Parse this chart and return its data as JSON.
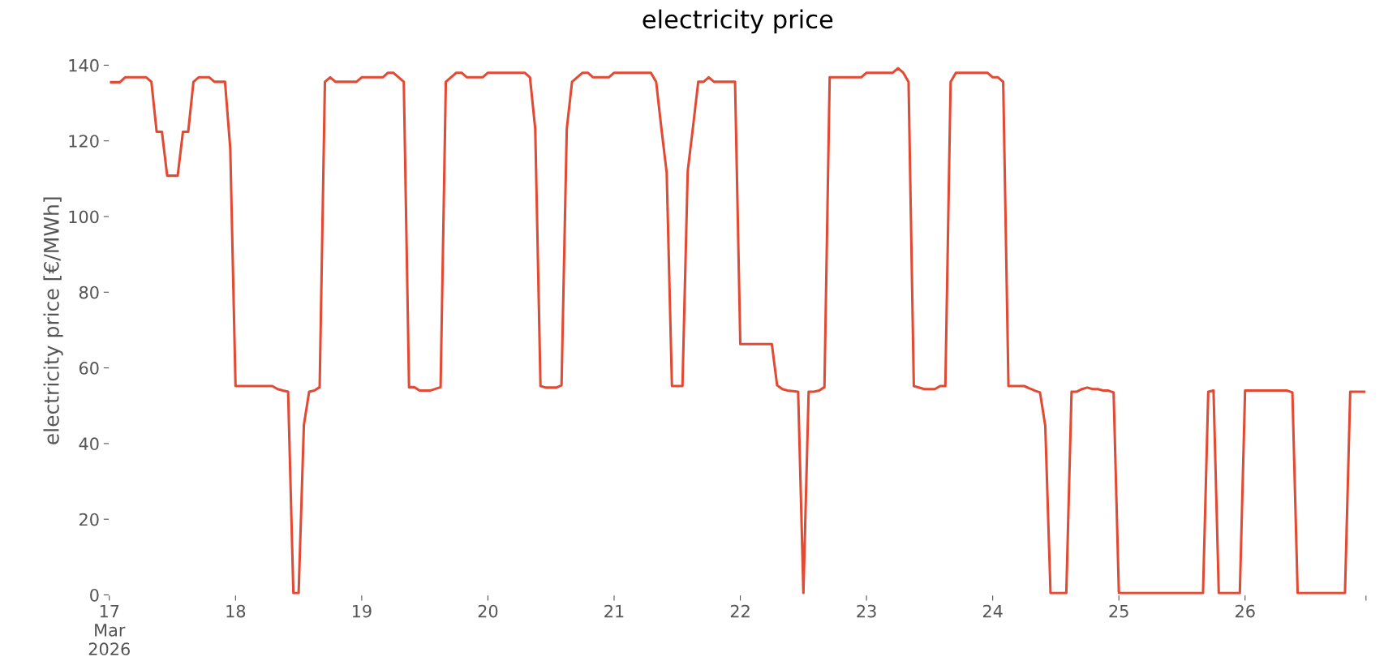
{
  "chart_data": {
    "type": "line",
    "title": "electricity price",
    "ylabel": "electricity price [€/MWh]",
    "x": [
      "2026-03-17T00:00",
      "2026-03-17T02:00",
      "2026-03-17T03:00",
      "2026-03-17T07:00",
      "2026-03-17T08:00",
      "2026-03-17T09:00",
      "2026-03-17T10:00",
      "2026-03-17T11:00",
      "2026-03-17T13:00",
      "2026-03-17T14:00",
      "2026-03-17T15:00",
      "2026-03-17T16:00",
      "2026-03-17T17:00",
      "2026-03-17T19:00",
      "2026-03-17T20:00",
      "2026-03-17T22:00",
      "2026-03-17T23:00",
      "2026-03-18T00:00",
      "2026-03-18T07:00",
      "2026-03-18T08:00",
      "2026-03-18T09:00",
      "2026-03-18T10:00",
      "2026-03-18T11:00",
      "2026-03-18T12:00",
      "2026-03-18T13:00",
      "2026-03-18T14:00",
      "2026-03-18T15:00",
      "2026-03-18T16:00",
      "2026-03-18T17:00",
      "2026-03-18T18:00",
      "2026-03-18T19:00",
      "2026-03-18T23:00",
      "2026-03-19T00:00",
      "2026-03-19T04:00",
      "2026-03-19T05:00",
      "2026-03-19T06:00",
      "2026-03-19T08:00",
      "2026-03-19T09:00",
      "2026-03-19T10:00",
      "2026-03-19T11:00",
      "2026-03-19T13:00",
      "2026-03-19T15:00",
      "2026-03-19T16:00",
      "2026-03-19T18:00",
      "2026-03-19T19:00",
      "2026-03-19T20:00",
      "2026-03-19T23:00",
      "2026-03-20T00:00",
      "2026-03-20T07:00",
      "2026-03-20T08:00",
      "2026-03-20T09:00",
      "2026-03-20T10:00",
      "2026-03-20T11:00",
      "2026-03-20T13:00",
      "2026-03-20T14:00",
      "2026-03-20T15:00",
      "2026-03-20T16:00",
      "2026-03-20T18:00",
      "2026-03-20T19:00",
      "2026-03-20T20:00",
      "2026-03-20T23:00",
      "2026-03-21T00:00",
      "2026-03-21T07:00",
      "2026-03-21T08:00",
      "2026-03-21T09:00",
      "2026-03-21T10:00",
      "2026-03-21T11:00",
      "2026-03-21T13:00",
      "2026-03-21T14:00",
      "2026-03-21T15:00",
      "2026-03-21T16:00",
      "2026-03-21T17:00",
      "2026-03-21T18:00",
      "2026-03-21T19:00",
      "2026-03-21T23:00",
      "2026-03-22T00:00",
      "2026-03-22T06:00",
      "2026-03-22T07:00",
      "2026-03-22T08:00",
      "2026-03-22T09:00",
      "2026-03-22T11:00",
      "2026-03-22T12:00",
      "2026-03-22T13:00",
      "2026-03-22T14:00",
      "2026-03-22T15:00",
      "2026-03-22T16:00",
      "2026-03-22T17:00",
      "2026-03-22T23:00",
      "2026-03-23T00:00",
      "2026-03-23T05:00",
      "2026-03-23T06:00",
      "2026-03-23T07:00",
      "2026-03-23T08:00",
      "2026-03-23T09:00",
      "2026-03-23T11:00",
      "2026-03-23T13:00",
      "2026-03-23T14:00",
      "2026-03-23T15:00",
      "2026-03-23T16:00",
      "2026-03-23T17:00",
      "2026-03-23T23:00",
      "2026-03-24T00:00",
      "2026-03-24T01:00",
      "2026-03-24T02:00",
      "2026-03-24T03:00",
      "2026-03-24T06:00",
      "2026-03-24T07:00",
      "2026-03-24T08:00",
      "2026-03-24T09:00",
      "2026-03-24T10:00",
      "2026-03-24T11:00",
      "2026-03-24T14:00",
      "2026-03-24T15:00",
      "2026-03-24T16:00",
      "2026-03-24T17:00",
      "2026-03-24T18:00",
      "2026-03-24T19:00",
      "2026-03-24T20:00",
      "2026-03-24T21:00",
      "2026-03-24T22:00",
      "2026-03-24T23:00",
      "2026-03-25T00:00",
      "2026-03-25T16:00",
      "2026-03-25T17:00",
      "2026-03-25T18:00",
      "2026-03-25T19:00",
      "2026-03-25T23:00",
      "2026-03-26T00:00",
      "2026-03-26T08:00",
      "2026-03-26T09:00",
      "2026-03-26T10:00",
      "2026-03-26T19:00",
      "2026-03-26T20:00",
      "2026-03-26T23:00"
    ],
    "series": [
      {
        "color": "#e24a33",
        "values": [
          135.5,
          135.5,
          136.8,
          136.8,
          135.6,
          122.4,
          122.4,
          110.8,
          110.8,
          122.4,
          122.4,
          135.6,
          136.8,
          136.8,
          135.6,
          135.6,
          118,
          55.2,
          55.2,
          54.4,
          54,
          53.7,
          0.5,
          0.5,
          44.9,
          53.7,
          54,
          54.9,
          135.6,
          136.8,
          135.6,
          135.6,
          136.8,
          136.8,
          138,
          138,
          135.6,
          54.9,
          54.9,
          54,
          54,
          54.9,
          135.6,
          138,
          138,
          136.8,
          136.8,
          138,
          138,
          136.8,
          123.2,
          55.2,
          54.8,
          54.8,
          55.4,
          123.2,
          135.6,
          138,
          138,
          136.8,
          136.8,
          138,
          138,
          135.6,
          123.2,
          111.6,
          55.2,
          55.2,
          112,
          123.6,
          135.6,
          135.6,
          136.8,
          135.6,
          135.6,
          66.3,
          66.3,
          55.4,
          54.4,
          54,
          53.7,
          0.5,
          53.7,
          53.7,
          54,
          54.9,
          136.8,
          136.8,
          138,
          138,
          139.2,
          138,
          135.6,
          55.2,
          54.4,
          54.4,
          55.2,
          55.2,
          135.6,
          138,
          138,
          136.8,
          136.8,
          135.6,
          55.2,
          55.2,
          54.6,
          54,
          53.5,
          44.7,
          0.5,
          0.5,
          53.7,
          53.7,
          54.4,
          54.8,
          54.4,
          54.4,
          54,
          54,
          53.5,
          0.5,
          0.5,
          53.7,
          54,
          0.5,
          0.5,
          54,
          54,
          53.5,
          0.5,
          0.5,
          53.7,
          53.7
        ]
      }
    ],
    "xlim": [
      "2026-03-17T00:00",
      "2026-03-26T23:00"
    ],
    "xticks": [
      {
        "value": "2026-03-17",
        "label": "17\nMar\n2026"
      },
      {
        "value": "2026-03-18",
        "label": "18"
      },
      {
        "value": "2026-03-19",
        "label": "19"
      },
      {
        "value": "2026-03-20",
        "label": "20"
      },
      {
        "value": "2026-03-21",
        "label": "21"
      },
      {
        "value": "2026-03-22",
        "label": "22"
      },
      {
        "value": "2026-03-23",
        "label": "23"
      },
      {
        "value": "2026-03-24",
        "label": "24"
      },
      {
        "value": "2026-03-25",
        "label": "25"
      },
      {
        "value": "2026-03-26",
        "label": "26"
      },
      {
        "value": "2026-03-26T23:00",
        "label": null
      }
    ],
    "ylim": [
      0,
      145
    ],
    "yticks": [
      0,
      20,
      40,
      60,
      80,
      100,
      120,
      140
    ],
    "grid": false,
    "legend": false,
    "line_style": "solid",
    "marker": "none"
  }
}
